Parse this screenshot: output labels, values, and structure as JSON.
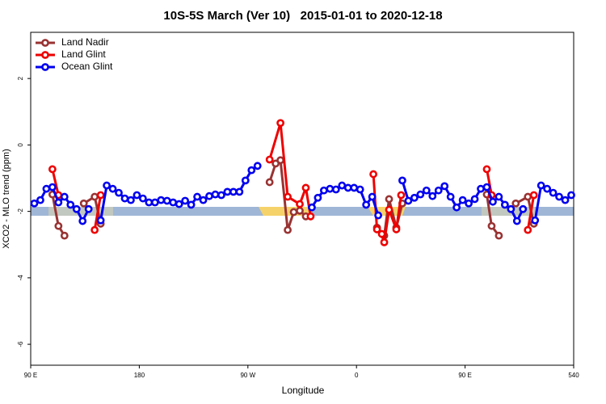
{
  "chart_data": {
    "type": "line",
    "title": "10S-5S March (Ver 10)   2015-01-01 to 2020-12-18",
    "xlabel": "Longitude",
    "ylabel": "XCO2 - MLO trend (ppm)",
    "xlim": [
      90,
      540
    ],
    "xticks": [
      {
        "value": 90,
        "label": "90 E"
      },
      180,
      {
        "value": 270,
        "label": "90 W"
      },
      {
        "value": 360,
        "label": "0"
      },
      {
        "value": 450,
        "label": "90 E"
      },
      540
    ],
    "ylim": [
      -6.63,
      3.39
    ],
    "yticks": [
      -6,
      -4,
      -2,
      0,
      2
    ],
    "legend": "top-left",
    "series": [
      {
        "name": "Land Nadir",
        "color": "#993333",
        "x": [
          108,
          113,
          118,
          123,
          134,
          143,
          148,
          283,
          288,
          293,
          297,
          303,
          308,
          313,
          318,
          373,
          377,
          383,
          387,
          393,
          398,
          433,
          468,
          472,
          478,
          485,
          492,
          502,
          507
        ],
        "values": [
          -1.49,
          -2.44,
          -2.73,
          null,
          -1.76,
          -1.56,
          -2.37,
          null,
          -1.12,
          -0.56,
          -0.46,
          -2.56,
          -2.02,
          -1.98,
          -2.15,
          null,
          -2.49,
          -2.73,
          -1.63,
          -2.49,
          -1.76,
          null,
          -1.49,
          -2.44,
          -2.73,
          null,
          -1.76,
          -1.56,
          -2.37
        ]
      },
      {
        "name": "Land Glint",
        "color": "#ee0000",
        "x": [
          108,
          113,
          128,
          143,
          148,
          283,
          288,
          297,
          303,
          313,
          318,
          322,
          350,
          374,
          377,
          381,
          383,
          387,
          393,
          397,
          433,
          468,
          472,
          487,
          502,
          507
        ],
        "values": [
          -0.73,
          -1.51,
          null,
          -2.56,
          -1.51,
          null,
          -0.44,
          0.66,
          -1.56,
          -1.78,
          -1.29,
          -2.15,
          null,
          -0.88,
          -2.54,
          -2.68,
          -2.93,
          -1.95,
          -2.54,
          -1.51,
          null,
          -0.73,
          -1.51,
          null,
          -2.56,
          -1.51
        ]
      },
      {
        "name": "Ocean Glint",
        "color": "#0000ee",
        "x": [
          93,
          98,
          103,
          108,
          113,
          118,
          123,
          128,
          133,
          138,
          143,
          148,
          153,
          158,
          163,
          168,
          173,
          178,
          183,
          188,
          193,
          198,
          203,
          208,
          213,
          218,
          223,
          228,
          233,
          238,
          243,
          248,
          253,
          258,
          263,
          268,
          273,
          278,
          300,
          323,
          328,
          333,
          338,
          343,
          348,
          353,
          358,
          363,
          368,
          373,
          378,
          388,
          398,
          403,
          408,
          413,
          418,
          423,
          428,
          433,
          438,
          443,
          448,
          453,
          458,
          463,
          468,
          473,
          478,
          483,
          488,
          493,
          498,
          503,
          508,
          513,
          518,
          523,
          528,
          533,
          538
        ],
        "values": [
          -1.76,
          -1.66,
          -1.32,
          -1.27,
          -1.73,
          -1.56,
          -1.8,
          -1.93,
          -2.29,
          -1.93,
          null,
          -2.27,
          -1.22,
          -1.32,
          -1.44,
          -1.61,
          -1.66,
          -1.51,
          -1.61,
          -1.73,
          -1.73,
          -1.66,
          -1.68,
          -1.73,
          -1.78,
          -1.68,
          -1.8,
          -1.56,
          -1.66,
          -1.54,
          -1.49,
          -1.51,
          -1.41,
          -1.41,
          -1.41,
          -1.07,
          -0.76,
          -0.63,
          null,
          -1.88,
          -1.59,
          -1.37,
          -1.32,
          -1.34,
          -1.22,
          -1.29,
          -1.29,
          -1.34,
          -1.8,
          -1.56,
          -2.12,
          null,
          -1.07,
          -1.68,
          -1.59,
          -1.49,
          -1.37,
          -1.54,
          -1.37,
          -1.24,
          -1.56,
          -1.88,
          -1.66,
          -1.76,
          -1.63,
          -1.32,
          -1.27,
          -1.71,
          -1.56,
          -1.8,
          -1.93,
          -2.29,
          -1.93,
          null,
          -2.27,
          -1.22,
          -1.32,
          -1.44,
          -1.56,
          -1.66,
          -1.51
        ]
      }
    ]
  }
}
